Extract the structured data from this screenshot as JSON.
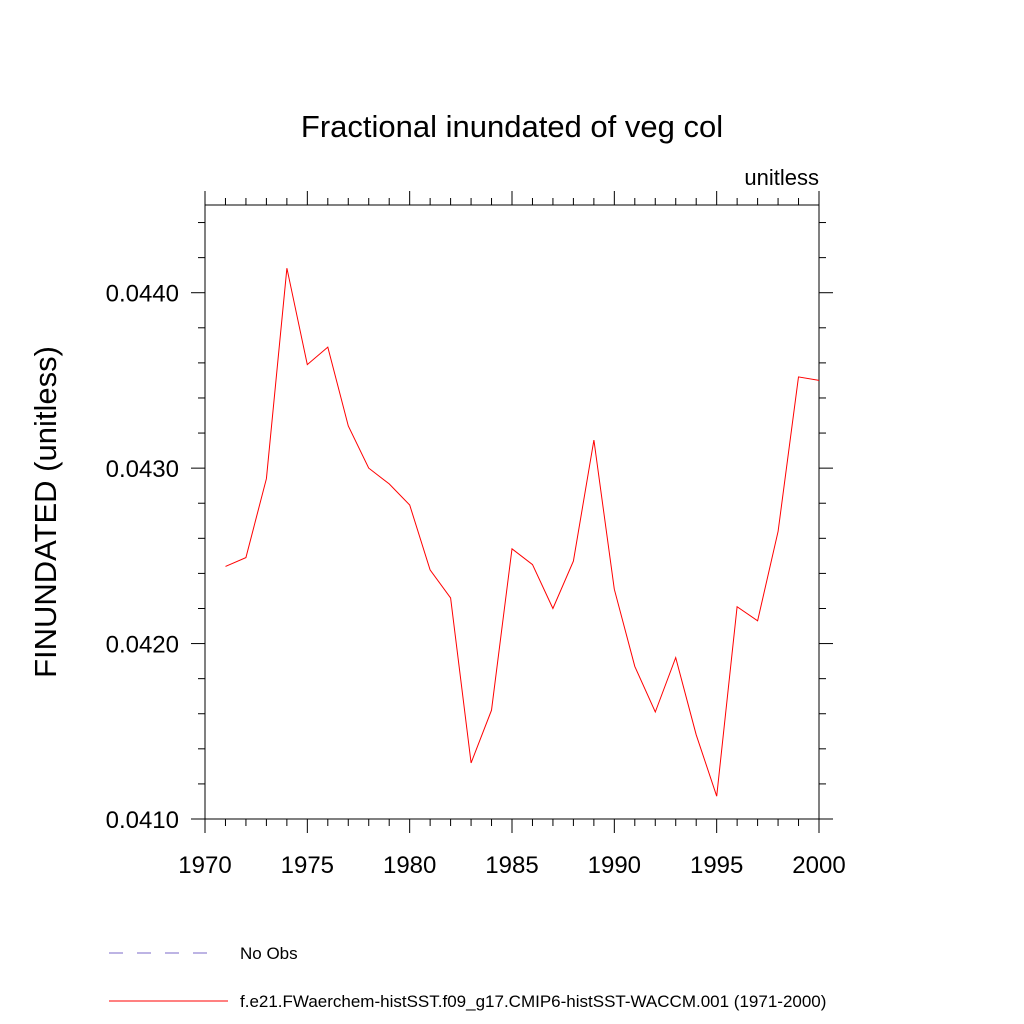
{
  "chart_data": {
    "type": "line",
    "title": "Fractional inundated of veg col",
    "units_label": "unitless",
    "ylabel": "FINUNDATED  (unitless)",
    "xlabel": "",
    "xlim": [
      1970,
      2000
    ],
    "ylim": [
      0.041,
      0.0445
    ],
    "x_ticks": [
      1970,
      1975,
      1980,
      1985,
      1990,
      1995,
      2000
    ],
    "x_tick_labels": [
      "1970",
      "1975",
      "1980",
      "1985",
      "1990",
      "1995",
      "2000"
    ],
    "y_ticks": [
      0.041,
      0.042,
      0.043,
      0.044
    ],
    "y_tick_labels": [
      "0.0410",
      "0.0420",
      "0.0430",
      "0.0440"
    ],
    "grid": false,
    "legend_position": "bottom-left",
    "series": [
      {
        "name": "f.e21.FWaerchem-histSST.f09_g17.CMIP6-histSST-WACCM.001 (1971-2000)",
        "color": "#ff0000",
        "style": "solid",
        "x": [
          1971,
          1972,
          1973,
          1974,
          1975,
          1976,
          1977,
          1978,
          1979,
          1980,
          1981,
          1982,
          1983,
          1984,
          1985,
          1986,
          1987,
          1988,
          1989,
          1990,
          1991,
          1992,
          1993,
          1994,
          1995,
          1996,
          1997,
          1998,
          1999,
          2000
        ],
        "y": [
          0.04244,
          0.04249,
          0.04294,
          0.04414,
          0.04359,
          0.04369,
          0.04324,
          0.043,
          0.04291,
          0.04279,
          0.04242,
          0.04226,
          0.04132,
          0.04162,
          0.04254,
          0.04245,
          0.0422,
          0.04247,
          0.04316,
          0.04231,
          0.04187,
          0.04161,
          0.04192,
          0.04148,
          0.04113,
          0.04221,
          0.04213,
          0.04264,
          0.04352,
          0.0435
        ]
      }
    ],
    "legend": [
      {
        "label": "No Obs",
        "color": "#7b68c8",
        "style": "dashed"
      },
      {
        "label": "f.e21.FWaerchem-histSST.f09_g17.CMIP6-histSST-WACCM.001 (1971-2000)",
        "color": "#ff0000",
        "style": "solid"
      }
    ]
  }
}
